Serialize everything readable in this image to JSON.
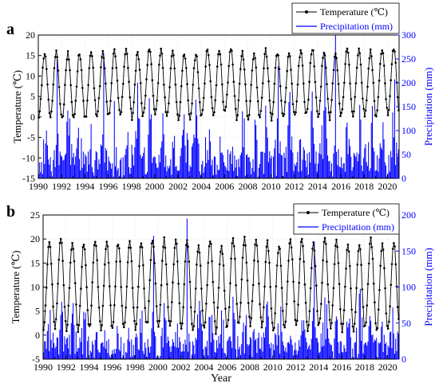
{
  "chart_data": [
    {
      "panel_label": "a",
      "type": "line",
      "title": "",
      "xlabel": "",
      "ylabel": "Temperature (℃)",
      "y2label": "Precipitation (mm)",
      "xlim": [
        1990,
        2021
      ],
      "ylim": [
        -15,
        20
      ],
      "y2lim": [
        0,
        300
      ],
      "yticks": [
        -15,
        -10,
        -5,
        0,
        5,
        10,
        15,
        20
      ],
      "y2ticks": [
        0,
        50,
        100,
        150,
        200,
        250,
        300
      ],
      "xtick_labels": [
        "1990",
        "1992",
        "1994",
        "1996",
        "1998",
        "2000",
        "2002",
        "2004",
        "2006",
        "2008",
        "2010",
        "2012",
        "2014",
        "2016",
        "2018",
        "2020"
      ],
      "legend_position": "top-right",
      "temperature": {
        "mean": 8.2,
        "amplitude": 8.0,
        "peak_month": 7,
        "min_value": -1.0,
        "max_value": 17.5
      },
      "precipitation": {
        "typical_peak": 150,
        "max_value": 300,
        "max_year": 2015,
        "other_high_years": [
          1991,
          1995,
          2010,
          2014
        ]
      },
      "series": [
        {
          "name": "Temperature (℃)",
          "axis": "left",
          "color": "#000000",
          "marker": "circle"
        },
        {
          "name": "Precipitation (mm)",
          "axis": "right",
          "color": "#0000ff",
          "style": "bar"
        }
      ]
    },
    {
      "panel_label": "b",
      "type": "line",
      "title": "",
      "xlabel": "Year",
      "ylabel": "Temperature (℃)",
      "y2label": "Precipitation (mm)",
      "xlim": [
        1990,
        2021
      ],
      "ylim": [
        -5,
        25
      ],
      "y2lim": [
        0,
        200
      ],
      "yticks": [
        -5,
        0,
        5,
        10,
        15,
        20,
        25
      ],
      "y2ticks": [
        0,
        50,
        100,
        150,
        200
      ],
      "xtick_labels": [
        "1990",
        "1992",
        "1994",
        "1996",
        "1998",
        "2000",
        "2002",
        "2004",
        "2006",
        "2008",
        "2010",
        "2012",
        "2014",
        "2016",
        "2018",
        "2020"
      ],
      "legend_position": "top-right",
      "temperature": {
        "mean": 10.3,
        "amplitude": 9.0,
        "peak_month": 7,
        "min_value": -1.0,
        "max_value": 21.0
      },
      "precipitation": {
        "typical_peak": 75,
        "max_value": 195,
        "max_year": 2002,
        "other_high_years": [
          1999,
          2013
        ]
      },
      "series": [
        {
          "name": "Temperature (℃)",
          "axis": "left",
          "color": "#000000",
          "marker": "circle"
        },
        {
          "name": "Precipitation (mm)",
          "axis": "right",
          "color": "#0000ff",
          "style": "bar"
        }
      ]
    }
  ],
  "colors": {
    "temperature": "#000000",
    "precipitation": "#0000ff",
    "axis": "#000000",
    "precip_axis": "#0000ff"
  }
}
